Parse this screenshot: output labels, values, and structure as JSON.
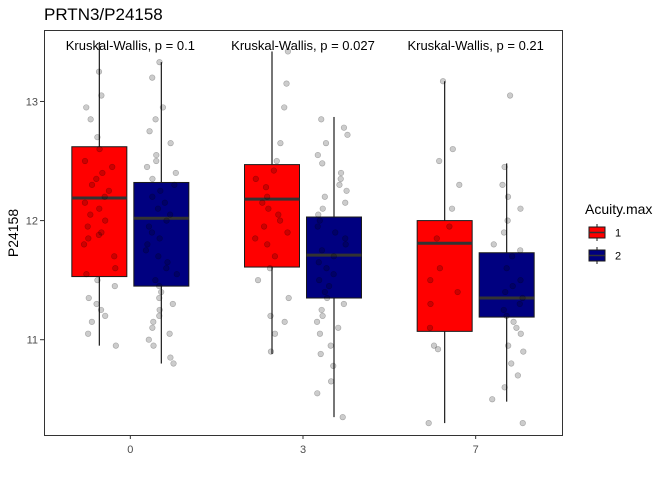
{
  "chart_data": {
    "type": "box",
    "title": "PRTN3/P24158",
    "xlabel": "",
    "ylabel": "P24158",
    "categories": [
      "0",
      "3",
      "7"
    ],
    "ylim": [
      10.2,
      13.6
    ],
    "yticks": [
      11,
      12,
      13
    ],
    "legend": {
      "title": "Acuity.max",
      "position": "right"
    },
    "annotations": [
      "Kruskal-Wallis, p = 0.1",
      "Kruskal-Wallis, p = 0.027",
      "Kruskal-Wallis, p = 0.21"
    ],
    "series": [
      {
        "name": "1",
        "color": "#ff0000",
        "boxes": [
          {
            "category": "0",
            "whisker_low": 10.95,
            "q1": 11.53,
            "median": 12.19,
            "q3": 12.62,
            "whisker_high": 13.5
          },
          {
            "category": "3",
            "whisker_low": 10.88,
            "q1": 11.61,
            "median": 12.18,
            "q3": 12.47,
            "whisker_high": 13.42
          },
          {
            "category": "7",
            "whisker_low": 10.3,
            "q1": 11.07,
            "median": 11.81,
            "q3": 12.0,
            "whisker_high": 13.17
          }
        ]
      },
      {
        "name": "2",
        "color": "#000080",
        "boxes": [
          {
            "category": "0",
            "whisker_low": 10.8,
            "q1": 11.45,
            "median": 12.02,
            "q3": 12.32,
            "whisker_high": 13.33
          },
          {
            "category": "3",
            "whisker_low": 10.35,
            "q1": 11.35,
            "median": 11.71,
            "q3": 12.03,
            "whisker_high": 12.87
          },
          {
            "category": "7",
            "whisker_low": 10.48,
            "q1": 11.19,
            "median": 11.35,
            "q3": 11.73,
            "whisker_high": 12.48
          }
        ]
      }
    ],
    "points": [
      {
        "category": "0",
        "group": "1",
        "values": [
          13.25,
          13.05,
          12.95,
          12.85,
          12.7,
          12.6,
          12.5,
          12.45,
          12.4,
          12.35,
          12.3,
          12.25,
          12.2,
          12.15,
          12.1,
          12.05,
          12.0,
          11.95,
          11.9,
          11.88,
          11.85,
          11.8,
          11.7,
          11.6,
          11.55,
          11.5,
          11.45,
          11.35,
          11.3,
          11.25,
          11.2,
          11.15,
          11.05,
          10.95
        ]
      },
      {
        "category": "0",
        "group": "2",
        "values": [
          13.33,
          13.2,
          12.95,
          12.85,
          12.75,
          12.65,
          12.55,
          12.5,
          12.45,
          12.4,
          12.35,
          12.3,
          12.25,
          12.2,
          12.15,
          12.1,
          12.05,
          12.0,
          11.95,
          11.9,
          11.85,
          11.8,
          11.75,
          11.7,
          11.65,
          11.6,
          11.55,
          11.5,
          11.45,
          11.4,
          11.35,
          11.3,
          11.25,
          11.2,
          11.15,
          11.1,
          11.05,
          11.0,
          10.95,
          10.85,
          10.8
        ]
      },
      {
        "category": "3",
        "group": "1",
        "values": [
          13.42,
          13.15,
          12.95,
          12.65,
          12.5,
          12.42,
          12.35,
          12.28,
          12.2,
          12.15,
          12.1,
          12.05,
          12.0,
          11.95,
          11.9,
          11.85,
          11.8,
          11.7,
          11.6,
          11.5,
          11.35,
          11.2,
          11.15,
          11.05,
          10.9
        ]
      },
      {
        "category": "3",
        "group": "2",
        "values": [
          12.85,
          12.78,
          12.72,
          12.65,
          12.55,
          12.48,
          12.4,
          12.35,
          12.3,
          12.25,
          12.2,
          12.15,
          12.1,
          12.05,
          12.0,
          11.95,
          11.9,
          11.85,
          11.8,
          11.75,
          11.7,
          11.65,
          11.6,
          11.55,
          11.5,
          11.45,
          11.4,
          11.35,
          11.3,
          11.25,
          11.2,
          11.15,
          11.1,
          11.05,
          10.95,
          10.88,
          10.78,
          10.65,
          10.55,
          10.35
        ]
      },
      {
        "category": "7",
        "group": "1",
        "values": [
          13.17,
          12.6,
          12.5,
          12.3,
          12.1,
          11.95,
          11.85,
          11.6,
          11.5,
          11.4,
          11.3,
          11.1,
          10.95,
          10.92,
          10.3
        ]
      },
      {
        "category": "7",
        "group": "2",
        "values": [
          13.05,
          12.45,
          12.3,
          12.2,
          12.1,
          12.0,
          11.9,
          11.8,
          11.75,
          11.7,
          11.6,
          11.5,
          11.45,
          11.4,
          11.35,
          11.3,
          11.25,
          11.2,
          11.15,
          11.1,
          11.05,
          10.95,
          10.9,
          10.8,
          10.7,
          10.6,
          10.5,
          10.3
        ]
      }
    ]
  }
}
